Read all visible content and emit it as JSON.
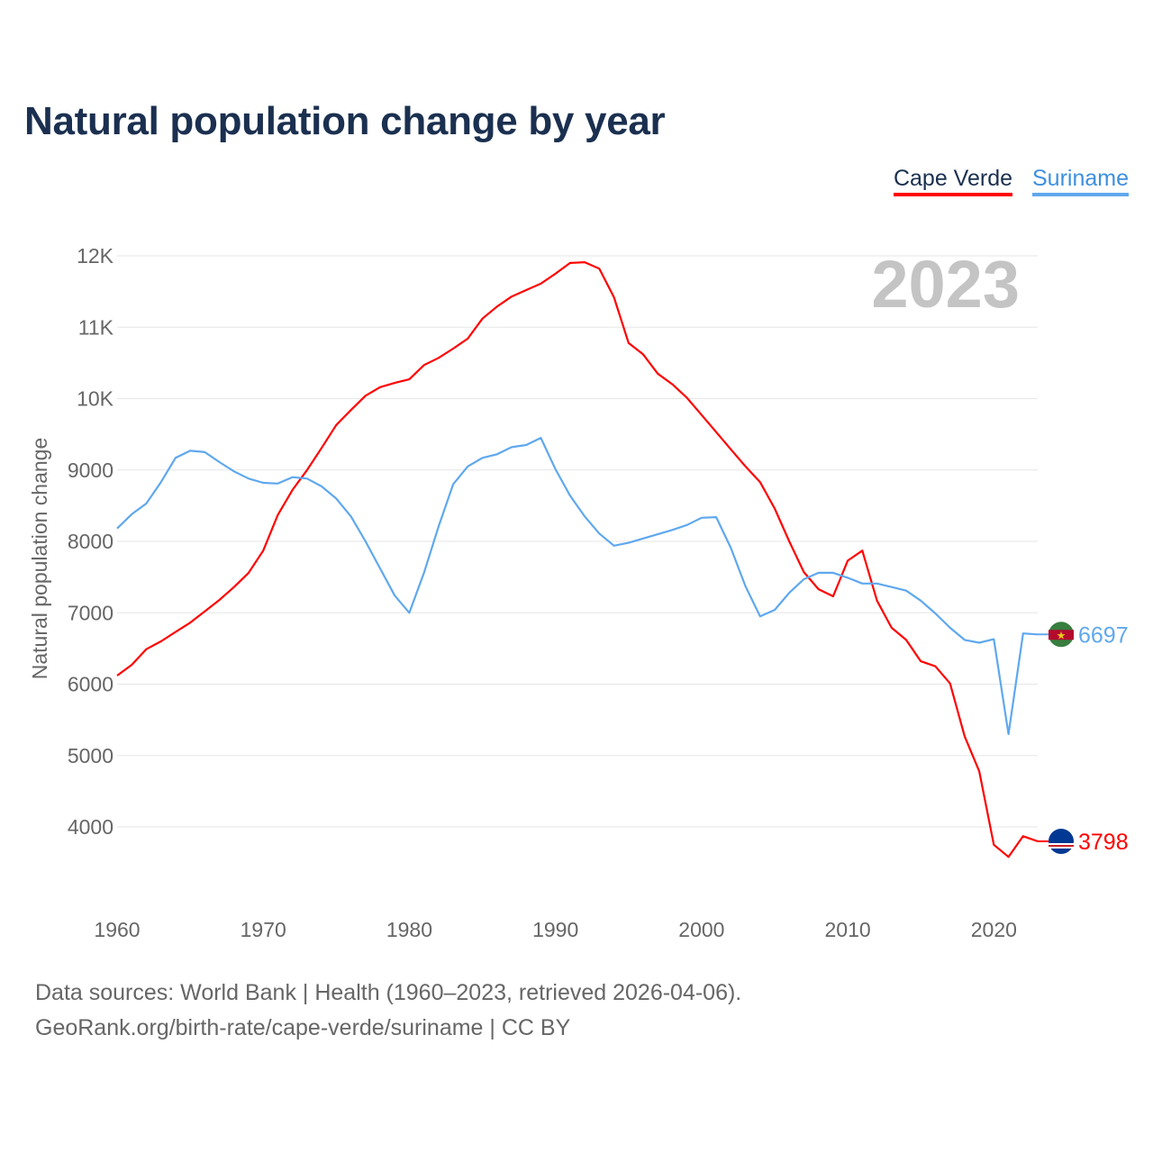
{
  "title": "Natural population change by year",
  "legend": [
    {
      "name": "Cape Verde",
      "color": "#ff0000"
    },
    {
      "name": "Suriname",
      "color": "#5fa8ee"
    }
  ],
  "chart_data": {
    "type": "line",
    "title": "Natural population change by year",
    "ylabel": "Natural population change",
    "xlabel": "",
    "year_watermark": "2023",
    "ylim": [
      3300,
      12000
    ],
    "xlim": [
      1960,
      2023
    ],
    "yticks": [
      4000,
      5000,
      6000,
      7000,
      8000,
      9000,
      10000,
      11000,
      12000
    ],
    "ytick_labels": [
      "4000",
      "5000",
      "6000",
      "7000",
      "8000",
      "9000",
      "10K",
      "11K",
      "12K"
    ],
    "xticks": [
      1960,
      1970,
      1980,
      1990,
      2000,
      2010,
      2020
    ],
    "xtick_labels": [
      "1960",
      "1970",
      "1980",
      "1990",
      "2000",
      "2010",
      "2020"
    ],
    "grid": true,
    "legend_position": "top-right",
    "x_start": 1960,
    "series": [
      {
        "name": "Cape Verde",
        "color": "#ff0000",
        "end_label": "3798",
        "values": [
          6120,
          6270,
          6490,
          6600,
          6730,
          6860,
          7020,
          7180,
          7360,
          7560,
          7870,
          8370,
          8720,
          9000,
          9310,
          9630,
          9840,
          10040,
          10160,
          10220,
          10270,
          10470,
          10570,
          10700,
          10840,
          11120,
          11290,
          11430,
          11520,
          11610,
          11750,
          11900,
          11910,
          11820,
          11420,
          10780,
          10620,
          10350,
          10200,
          10010,
          9770,
          9530,
          9290,
          9050,
          8830,
          8460,
          8000,
          7570,
          7330,
          7230,
          7730,
          7870,
          7170,
          6790,
          6620,
          6320,
          6250,
          6010,
          5270,
          4780,
          3750,
          3580,
          3870,
          3798
        ]
      },
      {
        "name": "Suriname",
        "color": "#5fa8ee",
        "end_label": "6697",
        "values": [
          8180,
          8380,
          8530,
          8830,
          9170,
          9270,
          9250,
          9110,
          8980,
          8880,
          8820,
          8810,
          8900,
          8880,
          8770,
          8600,
          8350,
          8000,
          7620,
          7240,
          7000,
          7560,
          8210,
          8800,
          9050,
          9170,
          9220,
          9320,
          9350,
          9450,
          9010,
          8640,
          8350,
          8110,
          7940,
          7980,
          8040,
          8100,
          8160,
          8230,
          8330,
          8340,
          7910,
          7370,
          6950,
          7040,
          7280,
          7470,
          7560,
          7560,
          7490,
          7410,
          7410,
          7360,
          7310,
          7170,
          6990,
          6790,
          6620,
          6580,
          6630,
          5300,
          6710,
          6697
        ]
      }
    ]
  },
  "footer": {
    "line1": "Data sources: World Bank | Health (1960–2023, retrieved 2026-04-06).",
    "line2": "GeoRank.org/birth-rate/cape-verde/suriname | CC BY"
  }
}
